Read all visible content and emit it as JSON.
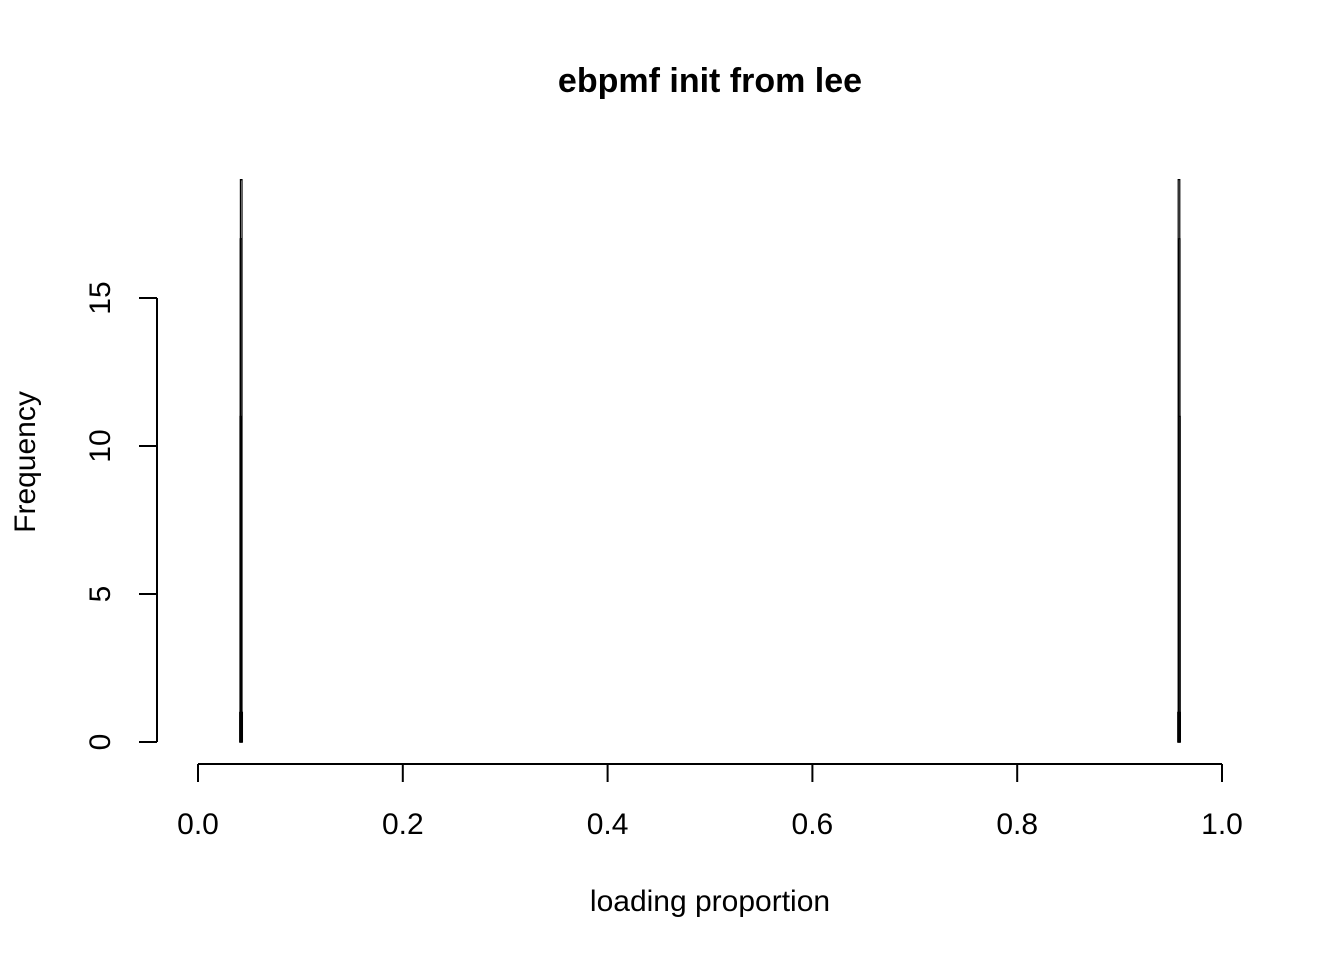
{
  "chart_data": {
    "type": "bar",
    "title": "ebpmf init from lee",
    "xlabel": "loading proportion",
    "ylabel": "Frequency",
    "xlim": [
      0.0,
      1.0
    ],
    "ylim": [
      0,
      19
    ],
    "x_ticks": [
      "0.0",
      "0.2",
      "0.4",
      "0.6",
      "0.8",
      "1.0"
    ],
    "y_ticks": [
      "0",
      "5",
      "10",
      "15"
    ],
    "grid": false,
    "series": [
      {
        "bins": [
          {
            "x": 0.0415,
            "count": 1
          },
          {
            "x": 0.0418,
            "count": 11
          },
          {
            "x": 0.042,
            "count": 17
          },
          {
            "x": 0.0422,
            "count": 19
          },
          {
            "x": 0.0424,
            "count": 1
          },
          {
            "x": 0.0426,
            "count": 1
          },
          {
            "x": 0.9576,
            "count": 1
          },
          {
            "x": 0.9578,
            "count": 1
          },
          {
            "x": 0.958,
            "count": 19
          },
          {
            "x": 0.9582,
            "count": 17
          },
          {
            "x": 0.9584,
            "count": 11
          },
          {
            "x": 0.9586,
            "count": 1
          }
        ]
      }
    ]
  }
}
